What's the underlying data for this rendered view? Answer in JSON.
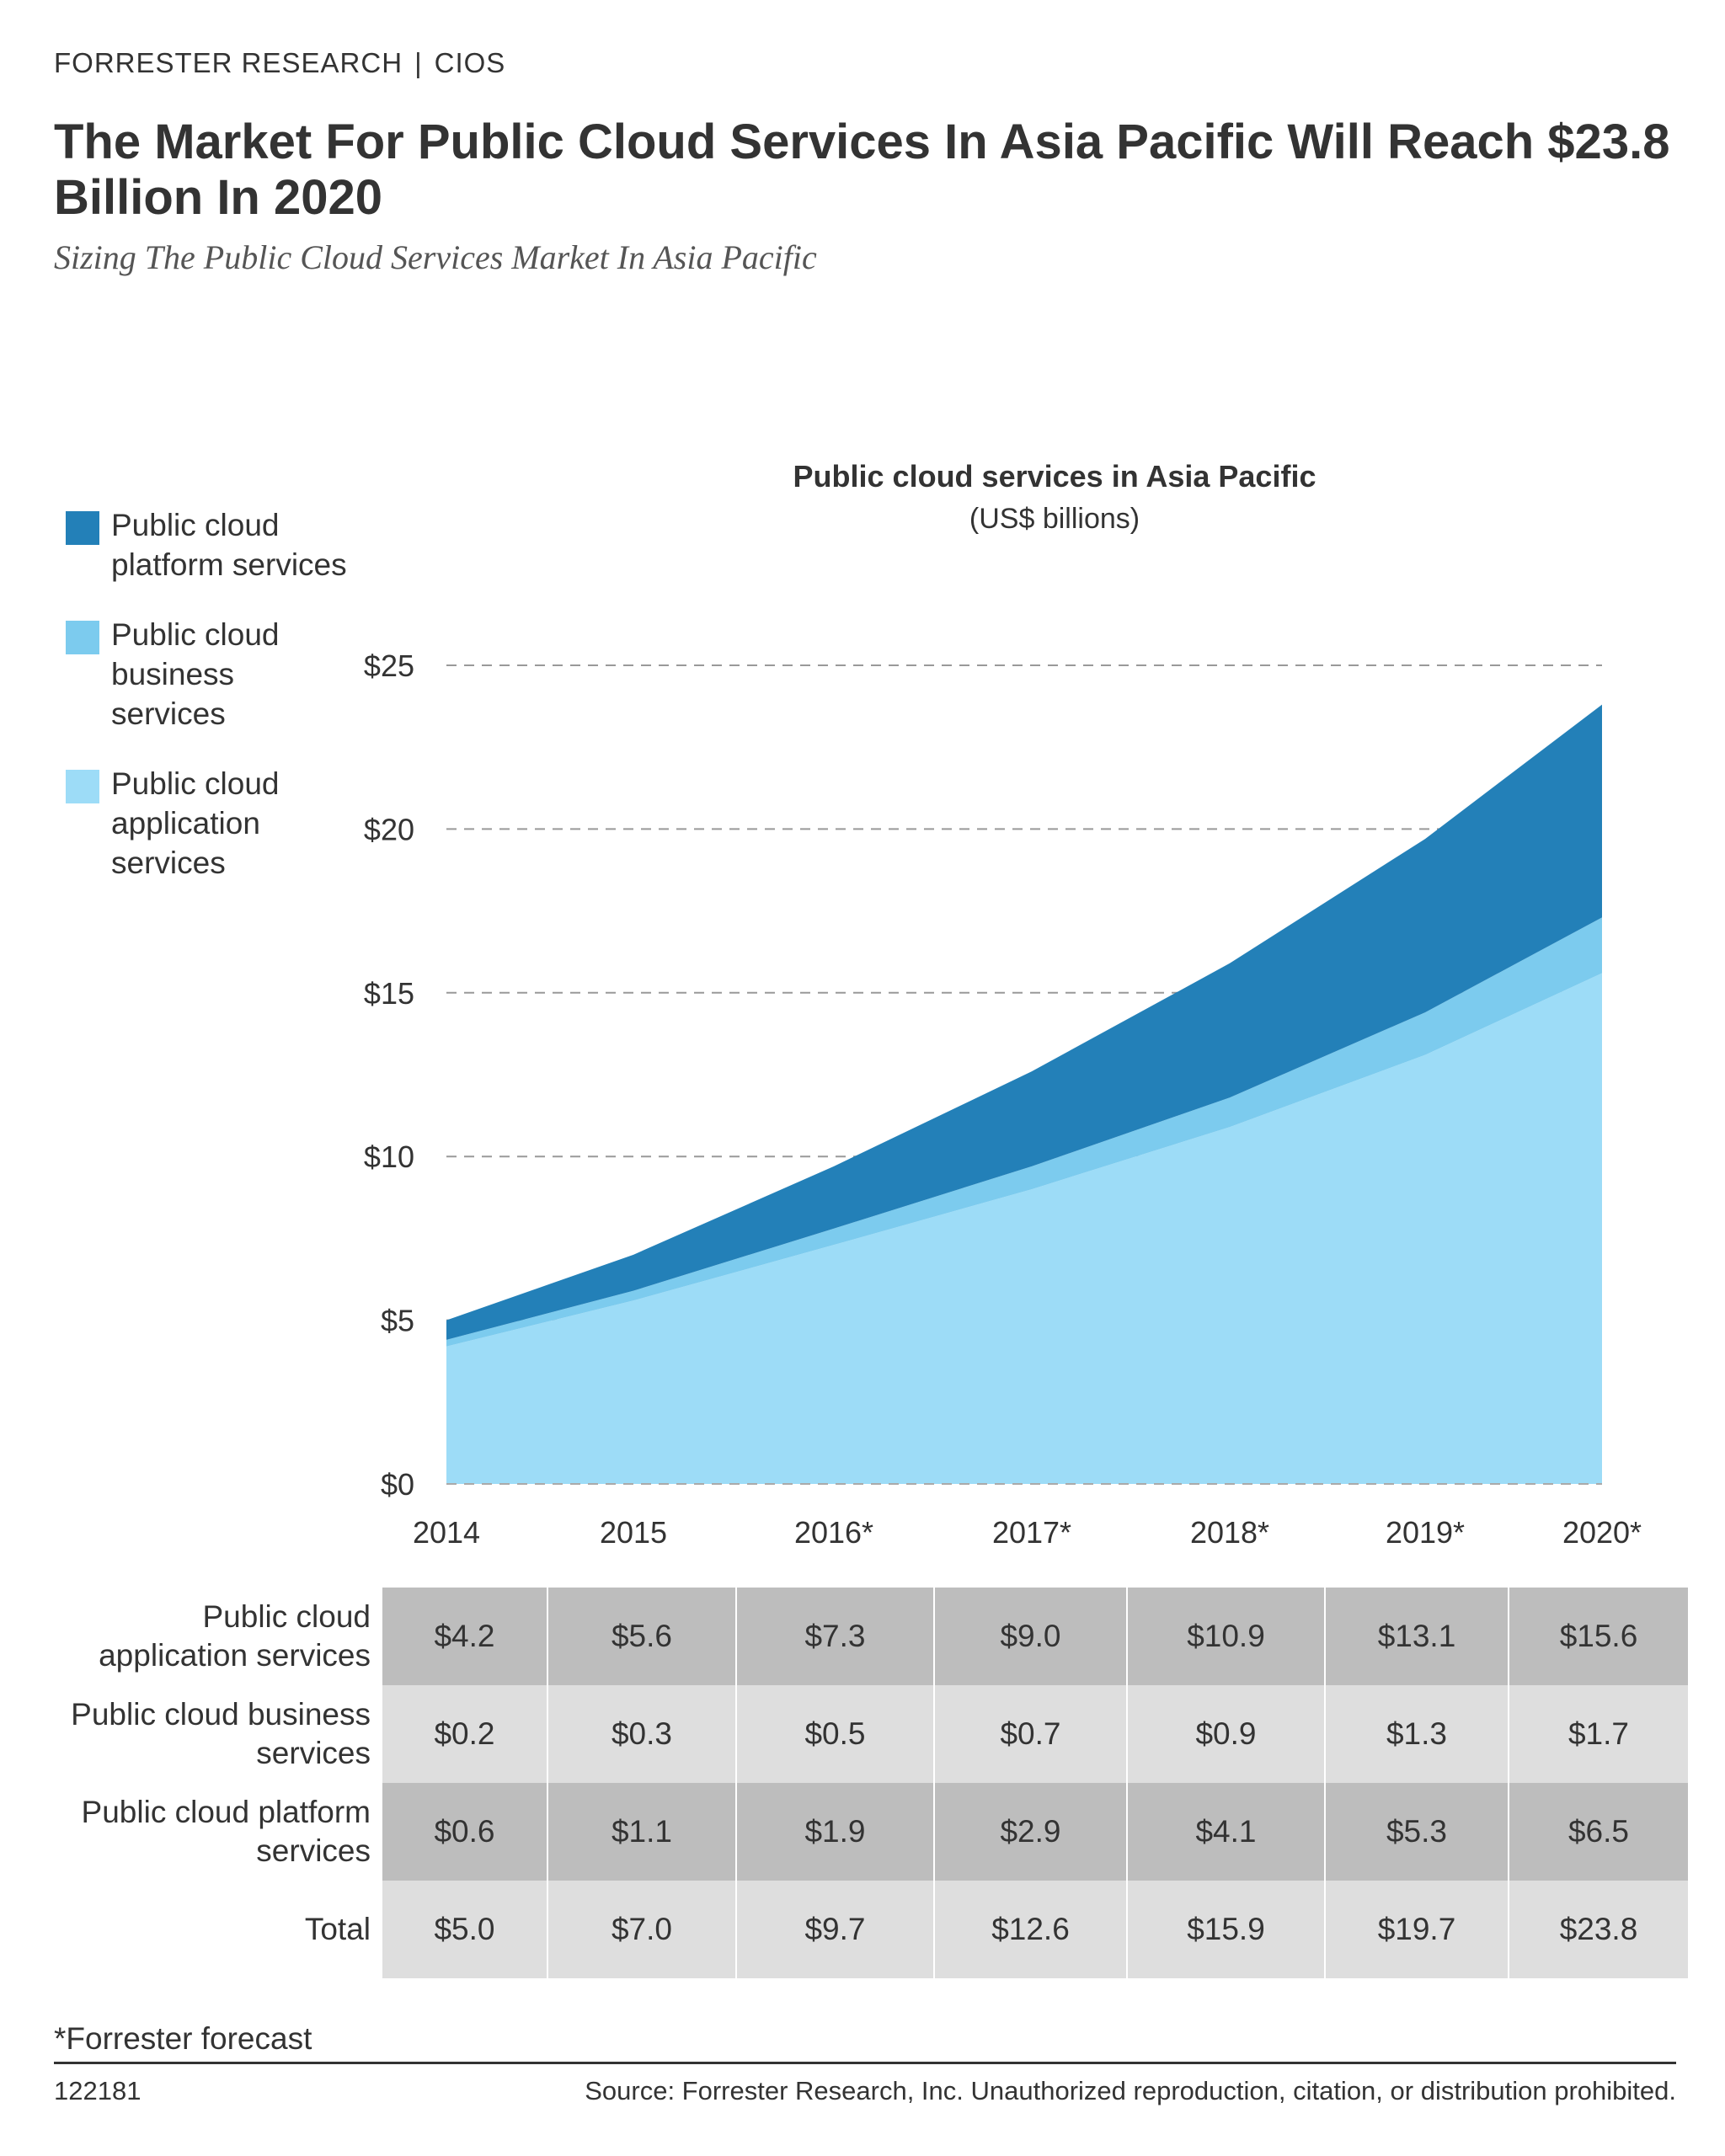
{
  "header": {
    "eyebrow_left": "FORRESTER RESEARCH",
    "eyebrow_right": "CIOS",
    "title": "The Market For Public Cloud Services In Asia Pacific Will Reach $23.8 Billion In 2020",
    "subtitle": "Sizing The Public Cloud Services Market In Asia Pacific"
  },
  "colors": {
    "platform": "#2380b8",
    "business": "#7ccbee",
    "application": "#9ddcf7",
    "grid": "#999999"
  },
  "chart_data": {
    "type": "area",
    "stacked": true,
    "title": "Public cloud services in Asia Pacific",
    "units": "(US$ billions)",
    "x": [
      "2014",
      "2015",
      "2016*",
      "2017*",
      "2018*",
      "2019*",
      "2020*"
    ],
    "ylim": [
      0,
      25
    ],
    "yticks": [
      0,
      5,
      10,
      15,
      20,
      25
    ],
    "ytick_labels": [
      "$0",
      "$5",
      "$10",
      "$15",
      "$20",
      "$25"
    ],
    "grid": "dashed horizontal",
    "legend_position": "top-left",
    "series": [
      {
        "name": "Public cloud application services",
        "legend_label": "Public cloud application services",
        "color": "#9ddcf7",
        "values": [
          4.2,
          5.6,
          7.3,
          9.0,
          10.9,
          13.1,
          15.6
        ]
      },
      {
        "name": "Public cloud business services",
        "legend_label": "Public cloud business services",
        "color": "#7ccbee",
        "values": [
          0.2,
          0.3,
          0.5,
          0.7,
          0.9,
          1.3,
          1.7
        ]
      },
      {
        "name": "Public cloud platform services",
        "legend_label": "Public cloud platform services",
        "color": "#2380b8",
        "values": [
          0.6,
          1.1,
          1.9,
          2.9,
          4.1,
          5.3,
          6.5
        ]
      }
    ]
  },
  "legend": [
    {
      "label": "Public cloud platform services",
      "color": "#2380b8"
    },
    {
      "label": "Public cloud business services",
      "color": "#7ccbee"
    },
    {
      "label": "Public cloud application services",
      "color": "#9ddcf7"
    }
  ],
  "table": {
    "rows": [
      {
        "label": "Public cloud application services",
        "values": [
          "$4.2",
          "$5.6",
          "$7.3",
          "$9.0",
          "$10.9",
          "$13.1",
          "$15.6"
        ]
      },
      {
        "label": "Public cloud business services",
        "values": [
          "$0.2",
          "$0.3",
          "$0.5",
          "$0.7",
          "$0.9",
          "$1.3",
          "$1.7"
        ]
      },
      {
        "label": "Public cloud platform services",
        "values": [
          "$0.6",
          "$1.1",
          "$1.9",
          "$2.9",
          "$4.1",
          "$5.3",
          "$6.5"
        ]
      },
      {
        "label": "Total",
        "values": [
          "$5.0",
          "$7.0",
          "$9.7",
          "$12.6",
          "$15.9",
          "$19.7",
          "$23.8"
        ]
      }
    ]
  },
  "footer": {
    "footnote": "*Forrester forecast",
    "code": "122181",
    "source": "Source: Forrester Research, Inc. Unauthorized reproduction, citation, or distribution prohibited."
  }
}
